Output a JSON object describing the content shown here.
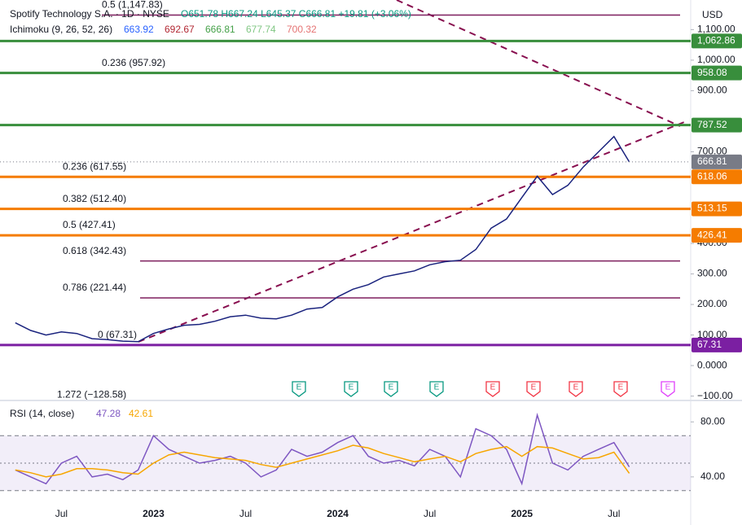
{
  "chart_data": [
    {
      "type": "line",
      "title": "Spotify Technology S.A. · 1D · NYSE",
      "ohlc": "O651.78 H667.24 L645.37 C666.81 +19.81 (+3.06%)",
      "indicator": "Ichimoku (9, 26, 52, 26)",
      "indicator_values": [
        {
          "value": 663.92,
          "color": "#2962ff"
        },
        {
          "value": 692.67,
          "color": "#b22833"
        },
        {
          "value": 666.81,
          "color": "#43a047"
        },
        {
          "value": 677.74,
          "color": "#81c784"
        },
        {
          "value": 700.32,
          "color": "#e57373"
        }
      ],
      "currency": "USD",
      "x": [
        "2022-04",
        "2022-05",
        "2022-06",
        "2022-07",
        "2022-08",
        "2022-09",
        "2022-10",
        "2022-11",
        "2022-12",
        "2023-01",
        "2023-02",
        "2023-03",
        "2023-04",
        "2023-05",
        "2023-06",
        "2023-07",
        "2023-08",
        "2023-09",
        "2023-10",
        "2023-11",
        "2023-12",
        "2024-01",
        "2024-02",
        "2024-03",
        "2024-04",
        "2024-05",
        "2024-06",
        "2024-07",
        "2024-08",
        "2024-09",
        "2024-10",
        "2024-11",
        "2024-12",
        "2025-01",
        "2025-02",
        "2025-03",
        "2025-04",
        "2025-05",
        "2025-06",
        "2025-07",
        "2025-08"
      ],
      "values": [
        140,
        115,
        100,
        110,
        105,
        88,
        85,
        80,
        78,
        105,
        120,
        132,
        135,
        145,
        160,
        165,
        155,
        153,
        165,
        185,
        190,
        225,
        250,
        265,
        290,
        300,
        310,
        330,
        340,
        345,
        380,
        450,
        480,
        550,
        620,
        560,
        590,
        650,
        700,
        750,
        666.81
      ],
      "color": "#1a237e",
      "xlim": [
        "2022-03",
        "2025-12"
      ],
      "ylim": [
        -109,
        1197
      ],
      "xticks": [
        {
          "value": "2022-07",
          "label": "Jul"
        },
        {
          "value": "2023-01",
          "label": "2023"
        },
        {
          "value": "2023-07",
          "label": "Jul"
        },
        {
          "value": "2024-01",
          "label": "2024"
        },
        {
          "value": "2024-07",
          "label": "Jul"
        },
        {
          "value": "2025-01",
          "label": "2025"
        },
        {
          "value": "2025-07",
          "label": "Jul"
        }
      ],
      "yticks": [
        {
          "value": 1100,
          "label": "1,100.00"
        },
        {
          "value": 1000,
          "label": "1,000.00"
        },
        {
          "value": 900,
          "label": "900.00"
        },
        {
          "value": 700,
          "label": "700.00"
        },
        {
          "value": 400,
          "label": "400.00"
        },
        {
          "value": 300,
          "label": "300.00"
        },
        {
          "value": 200,
          "label": "200.00"
        },
        {
          "value": 100,
          "label": "100.00"
        },
        {
          "value": 0,
          "label": "0.0000"
        },
        {
          "value": -100,
          "label": "−100.00"
        }
      ],
      "grid": false,
      "last_price": {
        "value": 666.81,
        "color": "#787b86"
      },
      "levels": [
        {
          "value": 1062.86,
          "label": "1,062.86",
          "color": "#388e3c"
        },
        {
          "value": 958.08,
          "color": "#388e3c"
        },
        {
          "value": 787.52,
          "color": "#388e3c"
        },
        {
          "value": 618.06,
          "color": "#f57c00"
        },
        {
          "value": 513.15,
          "color": "#f57c00"
        },
        {
          "value": 426.41,
          "color": "#f57c00"
        },
        {
          "value": 67.31,
          "color": "#7b1fa2"
        }
      ],
      "fib_color": "#7e1f5e",
      "fib": [
        {
          "value": 1147.83,
          "label": "0.5 (1,147.83)"
        },
        {
          "value": 957.92,
          "label": "0.236 (957.92)"
        },
        {
          "value": 617.55,
          "label": "0.236 (617.55)"
        },
        {
          "value": 512.4,
          "label": "0.382 (512.40)"
        },
        {
          "value": 427.41,
          "label": "0.5 (427.41)"
        },
        {
          "value": 342.43,
          "label": "0.618 (342.43)"
        },
        {
          "value": 221.44,
          "label": "0.786 (221.44)"
        },
        {
          "value": 67.31,
          "label": "0 (67.31)"
        },
        {
          "value": -128.58,
          "label": "1.272 (−128.58)"
        }
      ],
      "events": [
        {
          "label": "E",
          "color": "#089981"
        },
        {
          "label": "E",
          "color": "#089981"
        },
        {
          "label": "E",
          "color": "#089981"
        },
        {
          "label": "E",
          "color": "#089981"
        },
        {
          "label": "E",
          "color": "#f23645"
        },
        {
          "label": "E",
          "color": "#f23645"
        },
        {
          "label": "E",
          "color": "#f23645"
        },
        {
          "label": "E",
          "color": "#f23645"
        },
        {
          "label": "E",
          "color": "#e040fb"
        }
      ]
    },
    {
      "type": "line",
      "title": "RSI (14, close)",
      "series": [
        {
          "color": "#7e57c2",
          "last": 47.28,
          "values": [
            45,
            40,
            35,
            50,
            55,
            40,
            42,
            38,
            45,
            70,
            60,
            55,
            50,
            52,
            55,
            50,
            40,
            45,
            60,
            55,
            58,
            65,
            70,
            55,
            50,
            52,
            48,
            60,
            55,
            40,
            75,
            70,
            60,
            35,
            85,
            50,
            45,
            55,
            60,
            65,
            47.28
          ]
        },
        {
          "color": "#f7a600",
          "last": 42.61,
          "values": [
            45,
            43,
            40,
            42,
            46,
            46,
            45,
            43,
            42,
            50,
            56,
            58,
            56,
            54,
            53,
            52,
            49,
            47,
            50,
            53,
            56,
            59,
            63,
            61,
            57,
            54,
            51,
            53,
            55,
            51,
            57,
            60,
            62,
            55,
            62,
            61,
            57,
            53,
            54,
            58,
            42.61
          ]
        }
      ],
      "ylim": [
        5,
        95
      ],
      "yticks": [
        {
          "value": 80,
          "label": "80.00"
        },
        {
          "value": 40,
          "label": "40.00"
        }
      ],
      "bands": [
        70,
        50,
        30
      ]
    }
  ]
}
